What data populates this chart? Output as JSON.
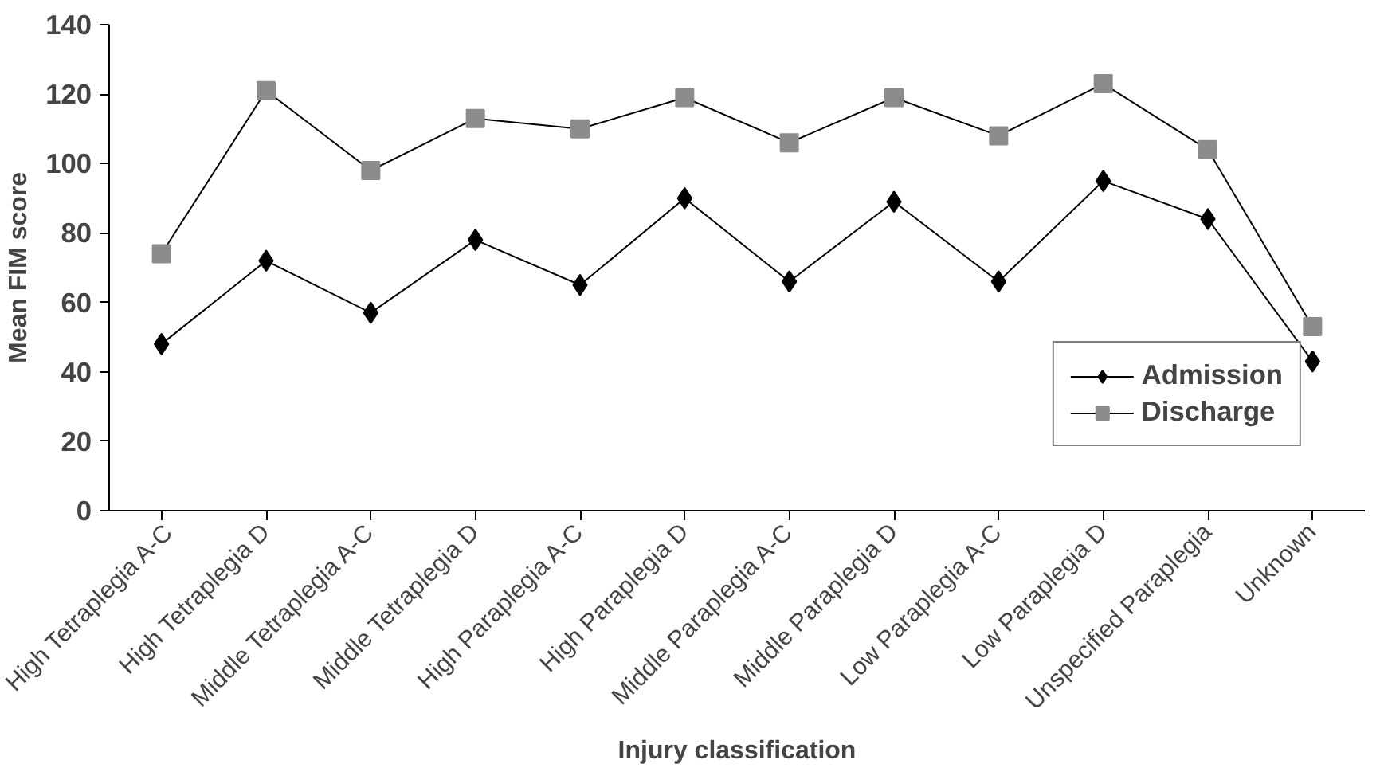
{
  "chart_data": {
    "type": "line",
    "xlabel": "Injury classification",
    "ylabel": "Mean FIM score",
    "categories": [
      "High Tetraplegia A-C",
      "High Tetraplegia D",
      "Middle Tetraplegia A-C",
      "Middle Tetraplegia D",
      "High Paraplegia A-C",
      "High Paraplegia D",
      "Middle Paraplegia A-C",
      "Middle Paraplegia D",
      "Low Paraplegia A-C",
      "Low Paraplegia D",
      "Unspecified Paraplegia",
      "Unknown"
    ],
    "series": [
      {
        "name": "Admission",
        "color": "#000000",
        "marker": "diamond",
        "values": [
          48,
          72,
          57,
          78,
          65,
          90,
          66,
          89,
          66,
          95,
          84,
          43
        ]
      },
      {
        "name": "Discharge",
        "color": "#8c8c8c",
        "marker": "square",
        "values": [
          74,
          121,
          98,
          113,
          110,
          119,
          106,
          119,
          108,
          123,
          104,
          53
        ]
      }
    ],
    "ylim": [
      0,
      140
    ],
    "yticks": [
      0,
      20,
      40,
      60,
      80,
      100,
      120,
      140
    ],
    "grid": false,
    "legend": "bottom right",
    "line_style": "solid"
  }
}
